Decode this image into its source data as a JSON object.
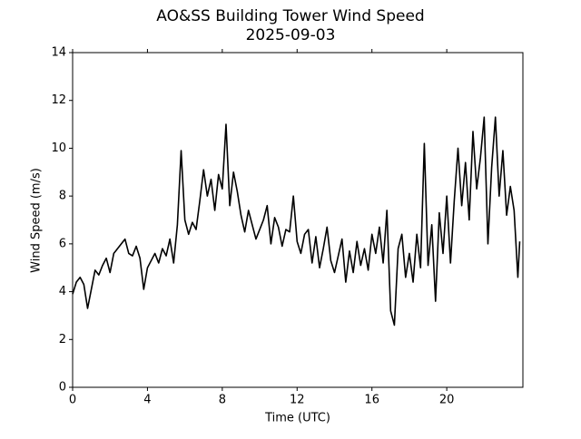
{
  "chart_data": {
    "type": "line",
    "title": "AO&SS Building Tower Wind Speed",
    "subtitle": "2025-09-03",
    "x_label": "Time (UTC)",
    "y_label": "Wind Speed (m/s)",
    "xlim": [
      0,
      24.07
    ],
    "ylim": [
      0,
      14
    ],
    "xticks": [
      0,
      4,
      8,
      12,
      16,
      20
    ],
    "yticks": [
      0,
      2,
      4,
      6,
      8,
      10,
      12,
      14
    ],
    "grid": false,
    "series": [
      {
        "color": "#000000",
        "x": [
          0.0,
          0.2,
          0.4,
          0.6,
          0.8,
          1.0,
          1.2,
          1.4,
          1.6,
          1.8,
          2.0,
          2.2,
          2.4,
          2.6,
          2.8,
          3.0,
          3.2,
          3.4,
          3.6,
          3.8,
          4.0,
          4.2,
          4.4,
          4.6,
          4.8,
          5.0,
          5.2,
          5.4,
          5.6,
          5.8,
          6.0,
          6.2,
          6.4,
          6.6,
          6.8,
          7.0,
          7.2,
          7.4,
          7.6,
          7.8,
          8.0,
          8.2,
          8.4,
          8.6,
          8.8,
          9.0,
          9.2,
          9.4,
          9.6,
          9.8,
          10.0,
          10.2,
          10.4,
          10.6,
          10.8,
          11.0,
          11.2,
          11.4,
          11.6,
          11.8,
          12.0,
          12.2,
          12.4,
          12.6,
          12.8,
          13.0,
          13.2,
          13.4,
          13.6,
          13.8,
          14.0,
          14.2,
          14.4,
          14.6,
          14.8,
          15.0,
          15.2,
          15.4,
          15.6,
          15.8,
          16.0,
          16.2,
          16.4,
          16.6,
          16.8,
          17.0,
          17.2,
          17.4,
          17.6,
          17.8,
          18.0,
          18.2,
          18.4,
          18.6,
          18.8,
          19.0,
          19.2,
          19.4,
          19.6,
          19.8,
          20.0,
          20.2,
          20.4,
          20.6,
          20.8,
          21.0,
          21.2,
          21.4,
          21.6,
          21.8,
          22.0,
          22.2,
          22.4,
          22.6,
          22.8,
          23.0,
          23.2,
          23.4,
          23.6,
          23.8,
          23.9
        ],
        "values": [
          3.9,
          4.4,
          4.6,
          4.3,
          3.3,
          4.1,
          4.9,
          4.7,
          5.1,
          5.4,
          4.8,
          5.6,
          5.8,
          6.0,
          6.2,
          5.6,
          5.5,
          5.9,
          5.4,
          4.1,
          5.0,
          5.3,
          5.6,
          5.2,
          5.8,
          5.5,
          6.2,
          5.2,
          6.8,
          9.9,
          7.0,
          6.4,
          6.9,
          6.6,
          7.8,
          9.1,
          8.0,
          8.7,
          7.4,
          8.9,
          8.3,
          11.0,
          7.6,
          9.0,
          8.2,
          7.2,
          6.5,
          7.4,
          6.8,
          6.2,
          6.6,
          7.0,
          7.6,
          6.0,
          7.1,
          6.7,
          5.9,
          6.6,
          6.5,
          8.0,
          6.1,
          5.6,
          6.4,
          6.6,
          5.2,
          6.3,
          5.0,
          5.8,
          6.7,
          5.3,
          4.8,
          5.5,
          6.2,
          4.4,
          5.7,
          4.8,
          6.1,
          5.1,
          5.8,
          4.9,
          6.4,
          5.6,
          6.7,
          5.2,
          7.4,
          3.2,
          2.6,
          5.8,
          6.4,
          4.6,
          5.6,
          4.4,
          6.4,
          5.0,
          10.2,
          5.1,
          6.8,
          3.6,
          7.3,
          5.6,
          8.0,
          5.2,
          7.8,
          10.0,
          7.6,
          9.4,
          7.0,
          10.7,
          8.3,
          9.6,
          11.3,
          6.0,
          9.2,
          11.3,
          8.0,
          9.9,
          7.2,
          8.4,
          7.4,
          4.6,
          6.1
        ]
      }
    ]
  }
}
